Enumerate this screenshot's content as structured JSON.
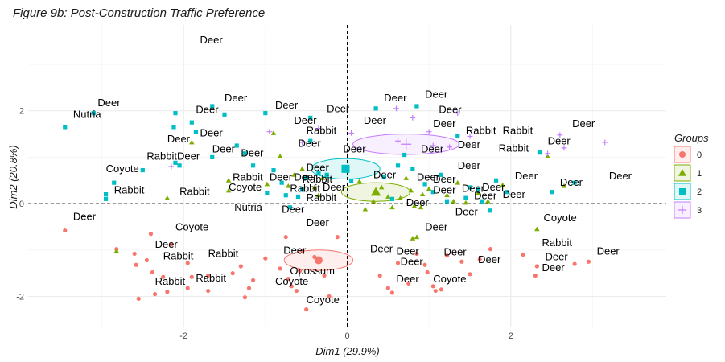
{
  "chart_data": {
    "type": "scatter",
    "title": "Figure 9b: Post-Construction Traffic Preference",
    "xlabel": "Dim1 (29.9%)",
    "ylabel": "Dim2 (20.8%)",
    "xlim": [
      -3.9,
      3.9
    ],
    "ylim": [
      -2.65,
      3.85
    ],
    "x_ticks": [
      -2,
      0,
      2
    ],
    "y_ticks": [
      -2,
      0,
      2
    ],
    "x_tick_labels": [
      "-2",
      "0",
      "2"
    ],
    "y_tick_labels": [
      "-2",
      "0",
      "2"
    ],
    "legend": {
      "title": "Groups",
      "position": "right",
      "entries": [
        "0",
        "1",
        "2",
        "3"
      ]
    },
    "series": [
      {
        "name": "0",
        "color": "#F8766D",
        "shape": "circle",
        "points": [
          [
            -3.45,
            -0.58
          ],
          [
            -2.82,
            -0.98
          ],
          [
            -2.6,
            -1.08
          ],
          [
            -2.4,
            -0.65
          ],
          [
            -2.45,
            -1.22
          ],
          [
            -2.58,
            -1.32
          ],
          [
            -2.38,
            -1.48
          ],
          [
            -2.25,
            -1.58
          ],
          [
            -2.2,
            -1.9
          ],
          [
            -2.35,
            -1.95
          ],
          [
            -2.55,
            -2.05
          ],
          [
            -1.95,
            -1.82
          ],
          [
            -1.9,
            -1.58
          ],
          [
            -1.95,
            -1.28
          ],
          [
            -1.7,
            -1.88
          ],
          [
            -1.7,
            -1.55
          ],
          [
            -1.4,
            -1.5
          ],
          [
            -1.15,
            -1.65
          ],
          [
            -1.2,
            -1.82
          ],
          [
            -1.25,
            -2.02
          ],
          [
            -1.0,
            -1.18
          ],
          [
            -0.82,
            -1.4
          ],
          [
            -0.72,
            -1.62
          ],
          [
            -0.68,
            -1.78
          ],
          [
            -0.55,
            -1.02
          ],
          [
            -0.58,
            -1.45
          ],
          [
            -0.62,
            -1.88
          ],
          [
            -0.5,
            -2.28
          ],
          [
            -0.4,
            -1.15
          ],
          [
            -0.28,
            -1.55
          ],
          [
            -0.22,
            -2.0
          ],
          [
            -0.12,
            -0.72
          ],
          [
            -0.75,
            -0.72
          ],
          [
            0.4,
            -1.55
          ],
          [
            0.5,
            -1.82
          ],
          [
            0.55,
            -1.92
          ],
          [
            0.62,
            -1.28
          ],
          [
            0.75,
            -1.72
          ],
          [
            0.85,
            -1.08
          ],
          [
            0.95,
            -1.32
          ],
          [
            0.98,
            -1.48
          ],
          [
            1.05,
            -1.78
          ],
          [
            1.08,
            -1.88
          ],
          [
            1.15,
            -1.85
          ],
          [
            1.22,
            -1.12
          ],
          [
            1.4,
            -1.25
          ],
          [
            1.5,
            -1.52
          ],
          [
            1.62,
            -1.2
          ],
          [
            1.75,
            -0.98
          ],
          [
            2.15,
            -1.1
          ],
          [
            2.32,
            -1.35
          ],
          [
            2.3,
            -1.55
          ],
          [
            2.78,
            -1.3
          ],
          [
            2.95,
            -1.25
          ],
          [
            -2.15,
            -0.88
          ],
          [
            -1.3,
            -1.35
          ]
        ]
      },
      {
        "name": "1",
        "color": "#7CAE00",
        "shape": "triangle",
        "points": [
          [
            -2.82,
            -1.02
          ],
          [
            -2.2,
            0.12
          ],
          [
            -1.9,
            1.32
          ],
          [
            -1.45,
            0.28
          ],
          [
            -1.45,
            0.5
          ],
          [
            -0.9,
            1.52
          ],
          [
            -0.82,
            1.02
          ],
          [
            -0.72,
            0.38
          ],
          [
            -0.65,
            0.62
          ],
          [
            -0.55,
            0.75
          ],
          [
            -0.4,
            0.35
          ],
          [
            -0.35,
            0.18
          ],
          [
            -0.3,
            0.55
          ],
          [
            0.15,
            0.48
          ],
          [
            0.22,
            -0.12
          ],
          [
            0.32,
            0.05
          ],
          [
            0.42,
            0.35
          ],
          [
            0.5,
            0.15
          ],
          [
            0.55,
            -0.08
          ],
          [
            0.65,
            0.12
          ],
          [
            0.72,
            0.55
          ],
          [
            0.78,
            0.28
          ],
          [
            0.82,
            -0.05
          ],
          [
            0.85,
            -0.72
          ],
          [
            0.9,
            -0.08
          ],
          [
            0.92,
            0.2
          ],
          [
            1.0,
            0.32
          ],
          [
            1.22,
            0.18
          ],
          [
            1.3,
            0.05
          ],
          [
            1.35,
            0.45
          ],
          [
            1.45,
            0.02
          ],
          [
            1.6,
            0.22
          ],
          [
            1.72,
            0.05
          ],
          [
            1.9,
            0.4
          ],
          [
            2.32,
            -0.55
          ],
          [
            2.45,
            1.02
          ],
          [
            2.65,
            0.38
          ],
          [
            -0.98,
            0.42
          ],
          [
            0.8,
            -0.75
          ]
        ]
      },
      {
        "name": "2",
        "color": "#00BFC4",
        "shape": "square",
        "points": [
          [
            -3.45,
            1.65
          ],
          [
            -3.1,
            1.95
          ],
          [
            -2.95,
            0.2
          ],
          [
            -2.95,
            0.1
          ],
          [
            -2.85,
            0.45
          ],
          [
            -2.5,
            0.72
          ],
          [
            -2.05,
            0.82
          ],
          [
            -2.12,
            1.65
          ],
          [
            -2.1,
            1.95
          ],
          [
            -1.9,
            1.75
          ],
          [
            -1.85,
            1.55
          ],
          [
            -1.65,
            2.1
          ],
          [
            -1.65,
            1.0
          ],
          [
            -1.5,
            1.92
          ],
          [
            -1.35,
            1.25
          ],
          [
            -1.25,
            1.08
          ],
          [
            -1.15,
            0.82
          ],
          [
            -1.0,
            1.95
          ],
          [
            -0.9,
            0.72
          ],
          [
            -0.8,
            0.45
          ],
          [
            -0.75,
            0.18
          ],
          [
            -0.7,
            -0.08
          ],
          [
            -0.6,
            0.15
          ],
          [
            -0.55,
            0.3
          ],
          [
            -0.5,
            0.55
          ],
          [
            -0.45,
            1.35
          ],
          [
            -0.45,
            1.85
          ],
          [
            -0.35,
            0.65
          ],
          [
            -0.25,
            0.62
          ],
          [
            0.0,
            0.72
          ],
          [
            0.05,
            0.48
          ],
          [
            0.35,
            2.05
          ],
          [
            0.45,
            0.58
          ],
          [
            0.55,
            0.1
          ],
          [
            0.7,
            1.05
          ],
          [
            0.8,
            0.75
          ],
          [
            0.85,
            2.1
          ],
          [
            0.95,
            0.42
          ],
          [
            1.05,
            0.25
          ],
          [
            1.15,
            0.62
          ],
          [
            1.22,
            0.05
          ],
          [
            1.35,
            1.45
          ],
          [
            1.45,
            0.12
          ],
          [
            1.5,
            0.35
          ],
          [
            1.6,
            0.3
          ],
          [
            1.65,
            0.05
          ],
          [
            1.75,
            -0.15
          ],
          [
            1.82,
            0.5
          ],
          [
            2.35,
            1.1
          ],
          [
            2.5,
            0.25
          ],
          [
            2.78,
            0.45
          ],
          [
            -2.1,
            0.88
          ],
          [
            -0.98,
            0.22
          ],
          [
            0.62,
            0.82
          ],
          [
            1.95,
            0.25
          ]
        ]
      },
      {
        "name": "3",
        "color": "#C77CFF",
        "shape": "plus",
        "points": [
          [
            -2.15,
            0.8
          ],
          [
            -0.95,
            1.55
          ],
          [
            -0.55,
            1.32
          ],
          [
            -0.35,
            1.62
          ],
          [
            0.05,
            1.52
          ],
          [
            0.62,
            1.35
          ],
          [
            0.6,
            2.05
          ],
          [
            0.8,
            1.85
          ],
          [
            1.0,
            1.55
          ],
          [
            1.05,
            1.25
          ],
          [
            1.25,
            1.22
          ],
          [
            1.35,
            1.95
          ],
          [
            1.5,
            1.45
          ],
          [
            2.45,
            1.08
          ],
          [
            2.65,
            1.2
          ],
          [
            2.6,
            1.48
          ],
          [
            3.15,
            1.32
          ]
        ]
      }
    ],
    "centroids": [
      {
        "group": "0",
        "x": -0.35,
        "y": -1.22
      },
      {
        "group": "1",
        "x": 0.35,
        "y": 0.25
      },
      {
        "group": "2",
        "x": -0.02,
        "y": 0.75
      },
      {
        "group": "3",
        "x": 0.72,
        "y": 1.28
      }
    ],
    "ellipses": [
      {
        "group": "0",
        "x": -0.35,
        "y": -1.22,
        "rx": 0.42,
        "ry": 0.22
      },
      {
        "group": "1",
        "x": 0.35,
        "y": 0.25,
        "rx": 0.42,
        "ry": 0.2
      },
      {
        "group": "2",
        "x": -0.02,
        "y": 0.75,
        "rx": 0.42,
        "ry": 0.22
      },
      {
        "group": "3",
        "x": 0.72,
        "y": 1.28,
        "rx": 0.65,
        "ry": 0.22
      }
    ],
    "annotations": [
      {
        "text": "Deer",
        "x": -1.8,
        "y": 3.45
      },
      {
        "text": "Deer",
        "x": -3.05,
        "y": 2.1
      },
      {
        "text": "Nutria",
        "x": -3.35,
        "y": 1.85
      },
      {
        "text": "Deer",
        "x": -1.5,
        "y": 2.2
      },
      {
        "text": "Deer",
        "x": -1.85,
        "y": 1.95
      },
      {
        "text": "Deer",
        "x": -0.88,
        "y": 2.05
      },
      {
        "text": "Deer",
        "x": -0.25,
        "y": 1.97
      },
      {
        "text": "Deer",
        "x": 0.45,
        "y": 2.2
      },
      {
        "text": "Deer",
        "x": 0.95,
        "y": 2.28
      },
      {
        "text": "Deer",
        "x": 1.12,
        "y": 1.95
      },
      {
        "text": "Deer",
        "x": 0.2,
        "y": 1.72
      },
      {
        "text": "Deer",
        "x": -1.8,
        "y": 1.45
      },
      {
        "text": "Deer",
        "x": -2.2,
        "y": 1.32
      },
      {
        "text": "Rabbit",
        "x": -0.5,
        "y": 1.5
      },
      {
        "text": "Deer",
        "x": -0.65,
        "y": 1.72
      },
      {
        "text": "Deer",
        "x": -0.6,
        "y": 1.22
      },
      {
        "text": "Deer",
        "x": -1.65,
        "y": 1.1
      },
      {
        "text": "Deer",
        "x": -1.3,
        "y": 1.02
      },
      {
        "text": "Deer",
        "x": 1.05,
        "y": 1.65
      },
      {
        "text": "Rabbit",
        "x": 1.45,
        "y": 1.5
      },
      {
        "text": "Rabbit",
        "x": 1.9,
        "y": 1.5
      },
      {
        "text": "Deer",
        "x": 2.75,
        "y": 1.65
      },
      {
        "text": "Deer",
        "x": 2.45,
        "y": 1.28
      },
      {
        "text": "Rabbit",
        "x": 1.85,
        "y": 1.12
      },
      {
        "text": "Deer",
        "x": 1.35,
        "y": 1.2
      },
      {
        "text": "Deer",
        "x": 0.9,
        "y": 1.1
      },
      {
        "text": "Deer",
        "x": -0.05,
        "y": 1.1
      },
      {
        "text": "RabbitDeer",
        "x": -2.45,
        "y": 0.95
      },
      {
        "text": "Coyote",
        "x": -2.95,
        "y": 0.68
      },
      {
        "text": "Rabbit",
        "x": -2.85,
        "y": 0.22
      },
      {
        "text": "Rabbit",
        "x": -2.05,
        "y": 0.18
      },
      {
        "text": "Rabbit",
        "x": -1.4,
        "y": 0.5
      },
      {
        "text": "Coyote",
        "x": -1.45,
        "y": 0.28
      },
      {
        "text": "Deer",
        "x": -0.95,
        "y": 0.5
      },
      {
        "text": "Deer",
        "x": -0.65,
        "y": 0.5
      },
      {
        "text": "Rabbit",
        "x": -0.55,
        "y": 0.45
      },
      {
        "text": "Deer",
        "x": -0.5,
        "y": 0.7
      },
      {
        "text": "Rabbit",
        "x": -0.7,
        "y": 0.25
      },
      {
        "text": "Rabbit",
        "x": -0.5,
        "y": 0.05
      },
      {
        "text": "Deer",
        "x": -0.3,
        "y": 0.28
      },
      {
        "text": "Deer",
        "x": 0.32,
        "y": 0.55
      },
      {
        "text": "Deer",
        "x": 0.85,
        "y": 0.5
      },
      {
        "text": "Deer",
        "x": 1.05,
        "y": 0.45
      },
      {
        "text": "Deer",
        "x": 1.35,
        "y": 0.75
      },
      {
        "text": "Deer",
        "x": 1.05,
        "y": 0.22
      },
      {
        "text": "Deer",
        "x": 1.4,
        "y": 0.25
      },
      {
        "text": "Deer",
        "x": 1.65,
        "y": 0.28
      },
      {
        "text": "Deer",
        "x": 1.55,
        "y": 0.1
      },
      {
        "text": "Deer",
        "x": 1.9,
        "y": 0.12
      },
      {
        "text": "Deer",
        "x": 2.05,
        "y": 0.52
      },
      {
        "text": "Deer",
        "x": 2.6,
        "y": 0.38
      },
      {
        "text": "Deer",
        "x": 3.2,
        "y": 0.52
      },
      {
        "text": "Deer",
        "x": 0.72,
        "y": -0.05
      },
      {
        "text": "Deer",
        "x": 1.32,
        "y": -0.25
      },
      {
        "text": "Deer",
        "x": -0.8,
        "y": -0.2
      },
      {
        "text": "Nutria",
        "x": -1.38,
        "y": -0.15
      },
      {
        "text": "Deer",
        "x": -0.5,
        "y": -0.48
      },
      {
        "text": "Deer",
        "x": 0.95,
        "y": -0.58
      },
      {
        "text": "Coyote",
        "x": 2.4,
        "y": -0.38
      },
      {
        "text": "Deer",
        "x": -3.35,
        "y": -0.35
      },
      {
        "text": "Coyote",
        "x": -2.1,
        "y": -0.58
      },
      {
        "text": "Deer",
        "x": -2.35,
        "y": -0.95
      },
      {
        "text": "Rabbit",
        "x": -2.25,
        "y": -1.2
      },
      {
        "text": "Rabbit",
        "x": -1.7,
        "y": -1.15
      },
      {
        "text": "Deer",
        "x": -0.78,
        "y": -1.08
      },
      {
        "text": "Opossum",
        "x": -0.7,
        "y": -1.52
      },
      {
        "text": "Coyote",
        "x": -0.88,
        "y": -1.75
      },
      {
        "text": "Coyote",
        "x": -0.5,
        "y": -2.15
      },
      {
        "text": "Rabbit",
        "x": -2.35,
        "y": -1.75
      },
      {
        "text": "Rabbit",
        "x": -1.85,
        "y": -1.68
      },
      {
        "text": "Deer",
        "x": 0.28,
        "y": -1.05
      },
      {
        "text": "Deer",
        "x": 0.6,
        "y": -1.1
      },
      {
        "text": "Deer",
        "x": 0.65,
        "y": -1.32
      },
      {
        "text": "Deer",
        "x": 1.18,
        "y": -1.12
      },
      {
        "text": "Deer",
        "x": 1.6,
        "y": -1.28
      },
      {
        "text": "Deer",
        "x": 0.6,
        "y": -1.7
      },
      {
        "text": "Coyote",
        "x": 1.05,
        "y": -1.7
      },
      {
        "text": "Rabbit",
        "x": 2.38,
        "y": -0.92
      },
      {
        "text": "Deer",
        "x": 2.42,
        "y": -1.22
      },
      {
        "text": "Deer",
        "x": 2.38,
        "y": -1.45
      },
      {
        "text": "Deer",
        "x": 3.05,
        "y": -1.1
      }
    ]
  }
}
